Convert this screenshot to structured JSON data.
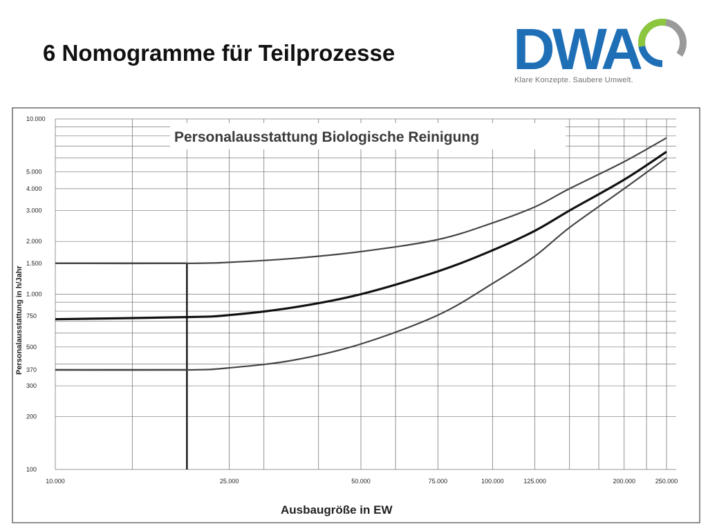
{
  "slide": {
    "title": "6 Nomogramme für Teilprozesse"
  },
  "logo": {
    "text": "DWA",
    "tagline": "Klare Konzepte. Saubere Umwelt.",
    "colors": {
      "blue": "#1f6fb7",
      "green": "#8cc63f",
      "grey": "#9a9a9a"
    }
  },
  "chart_data": {
    "type": "line",
    "title": "Personalausstattung Biologische Reinigung",
    "xlabel": "Ausbaugröße in EW",
    "ylabel": "Personalausstattung in h/Jahr",
    "x_scale": "log",
    "y_scale": "log",
    "xlim": [
      10000,
      250000
    ],
    "ylim": [
      100,
      10000
    ],
    "grid": true,
    "x_ticks": [
      10000,
      25000,
      50000,
      75000,
      100000,
      125000,
      200000,
      250000
    ],
    "x_tick_labels": [
      "10.000",
      "25.000",
      "50.000",
      "75.000",
      "100.000",
      "125.000",
      "200.000",
      "250.000"
    ],
    "y_ticks": [
      100,
      200,
      300,
      370,
      500,
      750,
      1000,
      1500,
      2000,
      3000,
      4000,
      5000,
      10000
    ],
    "y_tick_labels": [
      "100",
      "200",
      "300",
      "370",
      "500",
      "750",
      "1.000",
      "1.500",
      "2.000",
      "3.000",
      "4.000",
      "5.000",
      "10.000"
    ],
    "series": [
      {
        "x": [
          10000,
          20000,
          25000,
          35000,
          50000,
          75000,
          100000,
          125000,
          150000,
          200000,
          250000
        ],
        "y": [
          1500,
          1500,
          1520,
          1600,
          1750,
          2050,
          2550,
          3150,
          4000,
          5700,
          7800
        ]
      },
      {
        "x": [
          10000,
          20000,
          25000,
          35000,
          50000,
          75000,
          100000,
          125000,
          150000,
          200000,
          250000
        ],
        "y": [
          720,
          740,
          760,
          840,
          1000,
          1350,
          1780,
          2300,
          3000,
          4500,
          6500
        ]
      },
      {
        "x": [
          10000,
          20000,
          25000,
          35000,
          50000,
          75000,
          100000,
          125000,
          150000,
          200000,
          250000
        ],
        "y": [
          370,
          370,
          380,
          420,
          520,
          760,
          1150,
          1650,
          2400,
          4000,
          6000
        ]
      }
    ],
    "reading_example": {
      "x": 20000,
      "y_levels": [
        370,
        1500
      ]
    }
  }
}
